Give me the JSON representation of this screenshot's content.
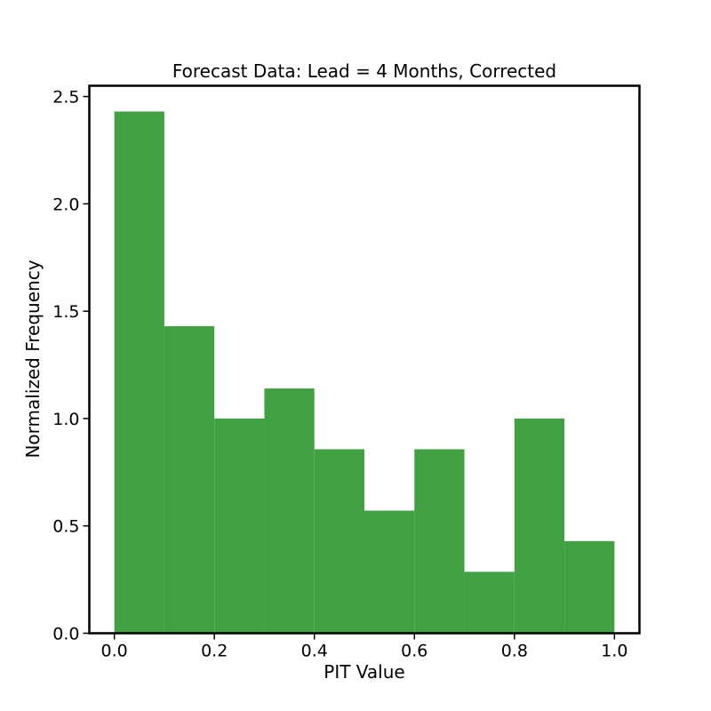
{
  "chart_data": {
    "type": "bar",
    "subtype": "histogram",
    "title": "Forecast Data: Lead = 4 Months, Corrected",
    "xlabel": "PIT Value",
    "ylabel": "Normalized Frequency",
    "bin_edges": [
      0.0,
      0.1,
      0.2,
      0.3,
      0.4,
      0.5,
      0.6,
      0.7,
      0.8,
      0.9,
      1.0
    ],
    "values": [
      2.43,
      1.43,
      1.0,
      1.14,
      0.857,
      0.571,
      0.857,
      0.286,
      1.0,
      0.429
    ],
    "xlim": [
      -0.05,
      1.05
    ],
    "ylim": [
      0,
      2.55
    ],
    "xticks": [
      0.0,
      0.2,
      0.4,
      0.6,
      0.8,
      1.0
    ],
    "xtick_labels": [
      "0.0",
      "0.2",
      "0.4",
      "0.6",
      "0.8",
      "1.0"
    ],
    "yticks": [
      0.0,
      0.5,
      1.0,
      1.5,
      2.0,
      2.5
    ],
    "ytick_labels": [
      "0.0",
      "0.5",
      "1.0",
      "1.5",
      "2.0",
      "2.5"
    ],
    "bar_color": "#41a041",
    "grid": false,
    "legend": "none"
  }
}
